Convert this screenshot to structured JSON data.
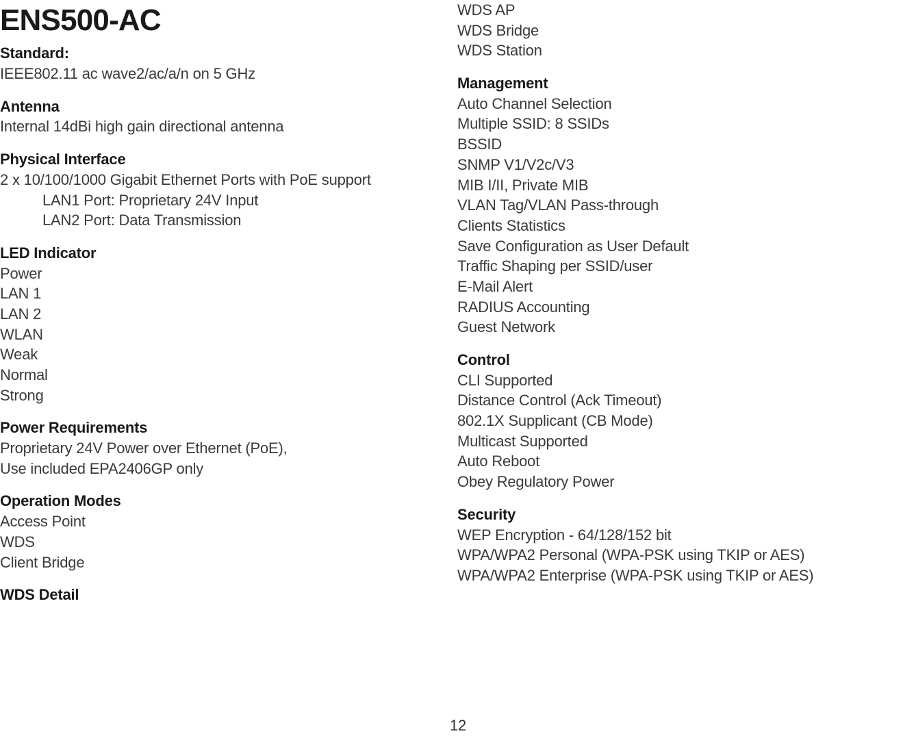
{
  "title": "ENS500-AC",
  "page_number": "12",
  "left": {
    "standard": {
      "head": "Standard:",
      "lines": [
        "IEEE802.11 ac wave2/ac/a/n on 5 GHz"
      ]
    },
    "antenna": {
      "head": "Antenna",
      "lines": [
        "Internal 14dBi high gain directional antenna"
      ]
    },
    "physical": {
      "head": "Physical Interface",
      "lines": [
        "2 x 10/100/1000 Gigabit Ethernet Ports with PoE support"
      ],
      "indent": [
        "LAN1 Port: Proprietary 24V Input",
        "LAN2 Port: Data Transmission"
      ]
    },
    "led": {
      "head": "LED Indicator",
      "lines": [
        "Power",
        "LAN 1",
        "LAN 2",
        "WLAN",
        "Weak",
        "Normal",
        "Strong"
      ]
    },
    "power": {
      "head": "Power Requirements",
      "lines": [
        "Proprietary 24V Power over Ethernet (PoE),",
        "Use included EPA2406GP only"
      ]
    },
    "opmodes": {
      "head": "Operation Modes",
      "lines": [
        "Access Point",
        "WDS",
        "Client Bridge"
      ]
    },
    "wdsdetail": {
      "head": "WDS Detail"
    }
  },
  "right": {
    "wds_cont": {
      "lines": [
        "WDS AP",
        "WDS Bridge",
        "WDS Station"
      ]
    },
    "management": {
      "head": "Management",
      "lines": [
        "Auto Channel Selection",
        "Multiple SSID: 8 SSIDs",
        "BSSID",
        "SNMP V1/V2c/V3",
        "MIB I/II, Private MIB",
        "VLAN Tag/VLAN Pass-through",
        "Clients Statistics",
        "Save Configuration as User Default",
        "Traffic Shaping per SSID/user",
        "E-Mail Alert",
        "RADIUS Accounting",
        "Guest Network"
      ]
    },
    "control": {
      "head": "Control",
      "lines": [
        "CLI Supported",
        "Distance Control (Ack Timeout)",
        "802.1X Supplicant (CB Mode)",
        "Multicast Supported",
        "Auto Reboot",
        "Obey Regulatory Power"
      ]
    },
    "security": {
      "head": "Security",
      "lines": [
        "WEP Encryption - 64/128/152 bit",
        "WPA/WPA2 Personal (WPA-PSK using TKIP or AES)",
        "WPA/WPA2 Enterprise (WPA-PSK using TKIP or AES)"
      ]
    }
  }
}
